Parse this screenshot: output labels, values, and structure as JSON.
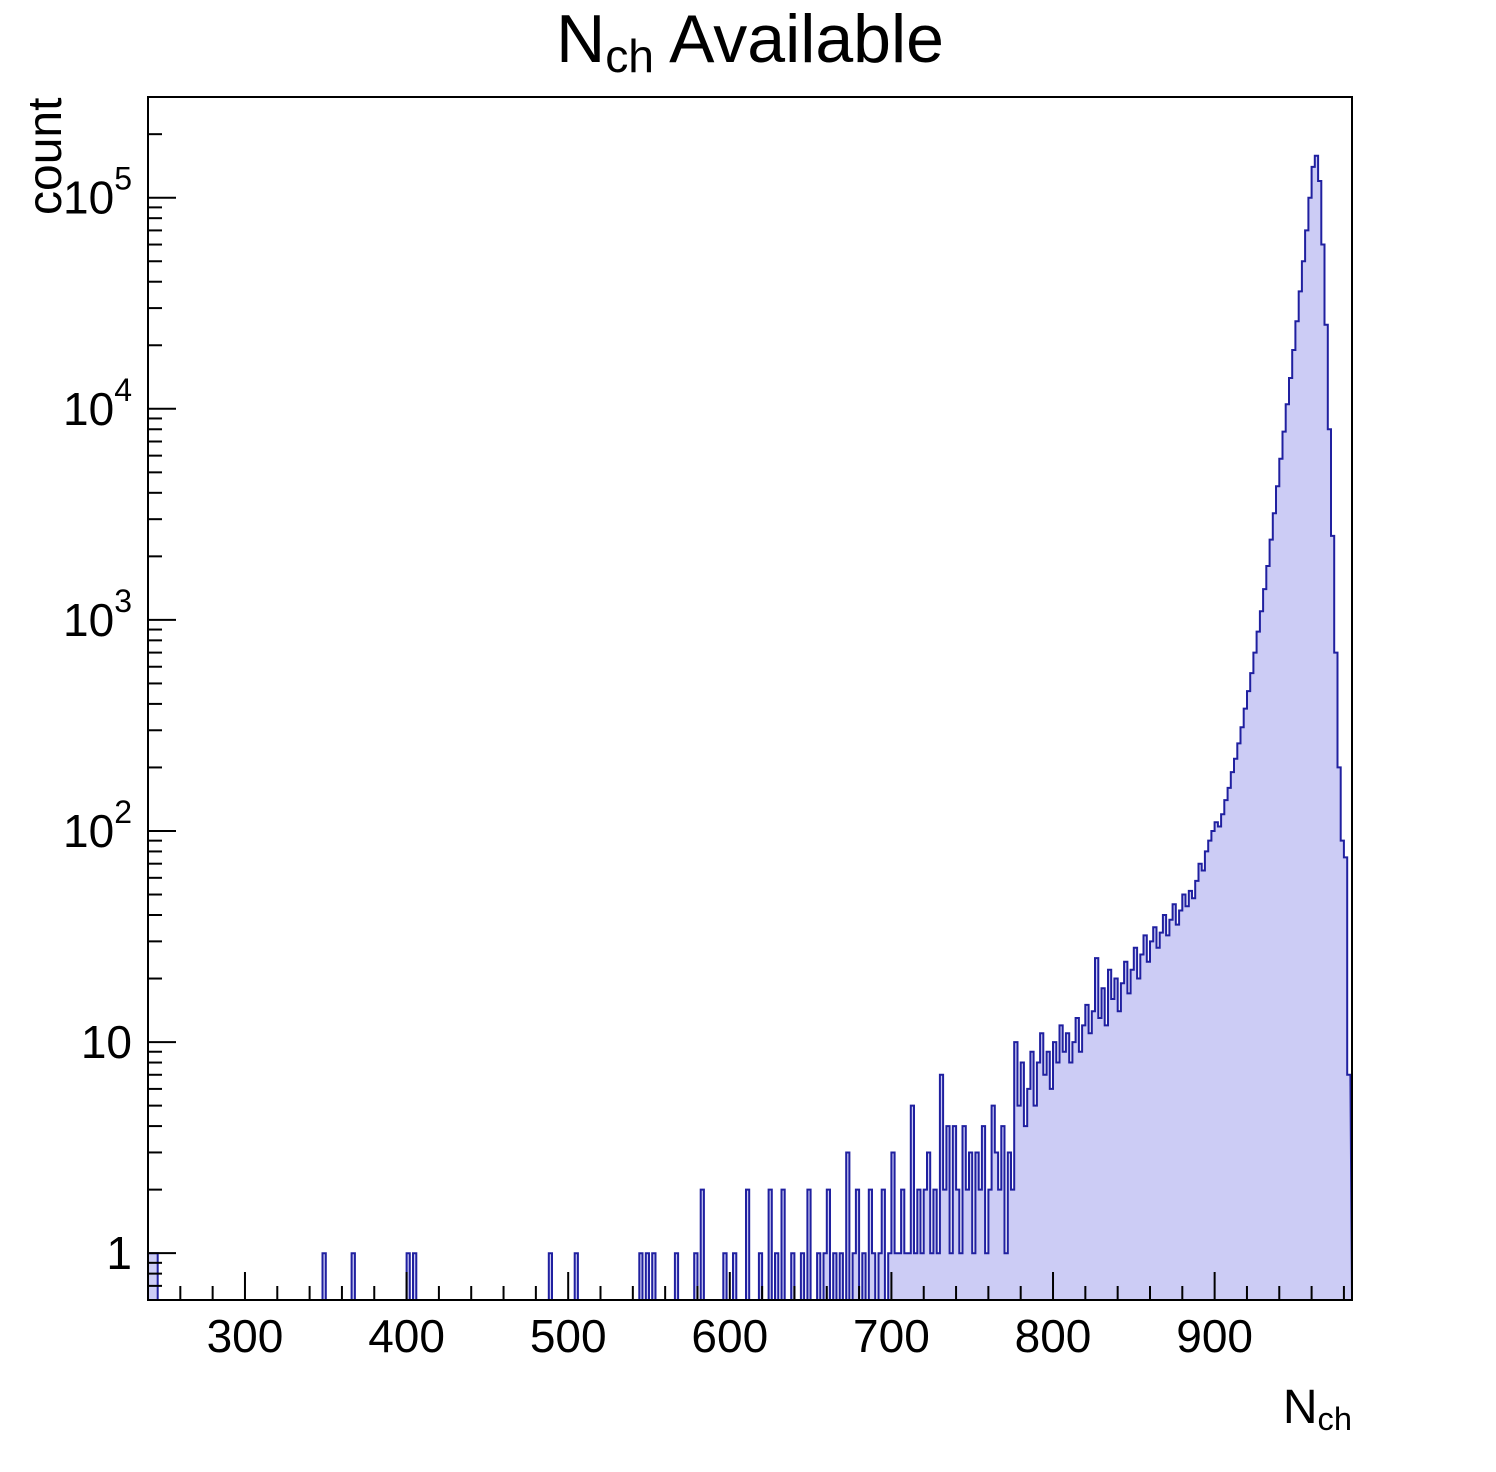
{
  "title": {
    "main": "N",
    "sub": "ch",
    "rest": " Available"
  },
  "axes": {
    "y_label": "count",
    "x_label_main": "N",
    "x_label_sub": "ch"
  },
  "colors": {
    "fill": "#ccccf5",
    "line": "#2020a0",
    "axis": "#000000",
    "background": "#ffffff"
  },
  "chart_data": {
    "type": "bar",
    "subtype": "step-histogram",
    "title": "N_ch Available",
    "xlabel": "N_ch",
    "ylabel": "count",
    "yscale": "log",
    "grid": false,
    "legend": "none",
    "xlim": [
      240,
      985
    ],
    "ylim": [
      0.6,
      300000
    ],
    "bin_width": 2,
    "x_ticks": {
      "major": [
        300,
        400,
        500,
        600,
        700,
        800,
        900
      ],
      "minor_step": 20
    },
    "y_ticks": [
      {
        "value": 1,
        "label": "1"
      },
      {
        "value": 10,
        "label": "10"
      },
      {
        "value": 100,
        "label": "10",
        "exp": "2"
      },
      {
        "value": 1000,
        "label": "10",
        "exp": "3"
      },
      {
        "value": 10000,
        "label": "10",
        "exp": "4"
      },
      {
        "value": 100000,
        "label": "10",
        "exp": "5"
      }
    ],
    "bins": [
      [
        240,
        1
      ],
      [
        242,
        1
      ],
      [
        244,
        1
      ],
      [
        348,
        1
      ],
      [
        366,
        1
      ],
      [
        400,
        1
      ],
      [
        404,
        1
      ],
      [
        488,
        1
      ],
      [
        504,
        1
      ],
      [
        544,
        1
      ],
      [
        548,
        1
      ],
      [
        552,
        1
      ],
      [
        566,
        1
      ],
      [
        578,
        1
      ],
      [
        582,
        2
      ],
      [
        596,
        1
      ],
      [
        602,
        1
      ],
      [
        610,
        2
      ],
      [
        618,
        1
      ],
      [
        624,
        2
      ],
      [
        628,
        1
      ],
      [
        632,
        2
      ],
      [
        638,
        1
      ],
      [
        644,
        1
      ],
      [
        648,
        2
      ],
      [
        654,
        1
      ],
      [
        658,
        1
      ],
      [
        660,
        2
      ],
      [
        664,
        1
      ],
      [
        668,
        1
      ],
      [
        672,
        3
      ],
      [
        676,
        1
      ],
      [
        678,
        2
      ],
      [
        682,
        1
      ],
      [
        686,
        2
      ],
      [
        688,
        1
      ],
      [
        692,
        1
      ],
      [
        694,
        2
      ],
      [
        698,
        1
      ],
      [
        700,
        3
      ],
      [
        702,
        1
      ],
      [
        704,
        1
      ],
      [
        706,
        2
      ],
      [
        708,
        1
      ],
      [
        710,
        1
      ],
      [
        712,
        5
      ],
      [
        714,
        1
      ],
      [
        716,
        2
      ],
      [
        718,
        1
      ],
      [
        720,
        2
      ],
      [
        722,
        3
      ],
      [
        724,
        1
      ],
      [
        726,
        2
      ],
      [
        728,
        1
      ],
      [
        730,
        7
      ],
      [
        732,
        2
      ],
      [
        734,
        4
      ],
      [
        736,
        1
      ],
      [
        738,
        4
      ],
      [
        740,
        2
      ],
      [
        742,
        1
      ],
      [
        744,
        4
      ],
      [
        746,
        2
      ],
      [
        748,
        3
      ],
      [
        750,
        1
      ],
      [
        752,
        3
      ],
      [
        754,
        2
      ],
      [
        756,
        4
      ],
      [
        758,
        1
      ],
      [
        760,
        2
      ],
      [
        762,
        5
      ],
      [
        764,
        3
      ],
      [
        766,
        2
      ],
      [
        768,
        4
      ],
      [
        770,
        1
      ],
      [
        772,
        3
      ],
      [
        774,
        2
      ],
      [
        776,
        10
      ],
      [
        778,
        5
      ],
      [
        780,
        8
      ],
      [
        782,
        4
      ],
      [
        784,
        6
      ],
      [
        786,
        9
      ],
      [
        788,
        5
      ],
      [
        790,
        8
      ],
      [
        792,
        11
      ],
      [
        794,
        7
      ],
      [
        796,
        9
      ],
      [
        798,
        6
      ],
      [
        800,
        10
      ],
      [
        802,
        8
      ],
      [
        804,
        12
      ],
      [
        806,
        9
      ],
      [
        808,
        11
      ],
      [
        810,
        8
      ],
      [
        812,
        10
      ],
      [
        814,
        13
      ],
      [
        816,
        9
      ],
      [
        818,
        12
      ],
      [
        820,
        15
      ],
      [
        822,
        11
      ],
      [
        824,
        14
      ],
      [
        826,
        25
      ],
      [
        828,
        13
      ],
      [
        830,
        18
      ],
      [
        832,
        12
      ],
      [
        834,
        22
      ],
      [
        836,
        16
      ],
      [
        838,
        20
      ],
      [
        840,
        14
      ],
      [
        842,
        19
      ],
      [
        844,
        24
      ],
      [
        846,
        17
      ],
      [
        848,
        22
      ],
      [
        850,
        28
      ],
      [
        852,
        20
      ],
      [
        854,
        26
      ],
      [
        856,
        32
      ],
      [
        858,
        24
      ],
      [
        860,
        30
      ],
      [
        862,
        35
      ],
      [
        864,
        28
      ],
      [
        866,
        33
      ],
      [
        868,
        40
      ],
      [
        870,
        32
      ],
      [
        872,
        38
      ],
      [
        874,
        45
      ],
      [
        876,
        36
      ],
      [
        878,
        42
      ],
      [
        880,
        50
      ],
      [
        882,
        44
      ],
      [
        884,
        52
      ],
      [
        886,
        48
      ],
      [
        888,
        58
      ],
      [
        890,
        70
      ],
      [
        892,
        65
      ],
      [
        894,
        80
      ],
      [
        896,
        90
      ],
      [
        898,
        100
      ],
      [
        900,
        110
      ],
      [
        902,
        105
      ],
      [
        904,
        120
      ],
      [
        906,
        140
      ],
      [
        908,
        160
      ],
      [
        910,
        190
      ],
      [
        912,
        220
      ],
      [
        914,
        260
      ],
      [
        916,
        310
      ],
      [
        918,
        380
      ],
      [
        920,
        460
      ],
      [
        922,
        560
      ],
      [
        924,
        700
      ],
      [
        926,
        880
      ],
      [
        928,
        1100
      ],
      [
        930,
        1400
      ],
      [
        932,
        1800
      ],
      [
        934,
        2400
      ],
      [
        936,
        3200
      ],
      [
        938,
        4300
      ],
      [
        940,
        5800
      ],
      [
        942,
        7800
      ],
      [
        944,
        10500
      ],
      [
        946,
        14000
      ],
      [
        948,
        19000
      ],
      [
        950,
        26000
      ],
      [
        952,
        36000
      ],
      [
        954,
        50000
      ],
      [
        956,
        70000
      ],
      [
        958,
        100000
      ],
      [
        960,
        140000
      ],
      [
        962,
        158000
      ],
      [
        964,
        120000
      ],
      [
        966,
        60000
      ],
      [
        968,
        25000
      ],
      [
        970,
        8000
      ],
      [
        972,
        2500
      ],
      [
        974,
        700
      ],
      [
        976,
        200
      ],
      [
        978,
        90
      ],
      [
        980,
        75
      ],
      [
        982,
        7
      ]
    ]
  }
}
